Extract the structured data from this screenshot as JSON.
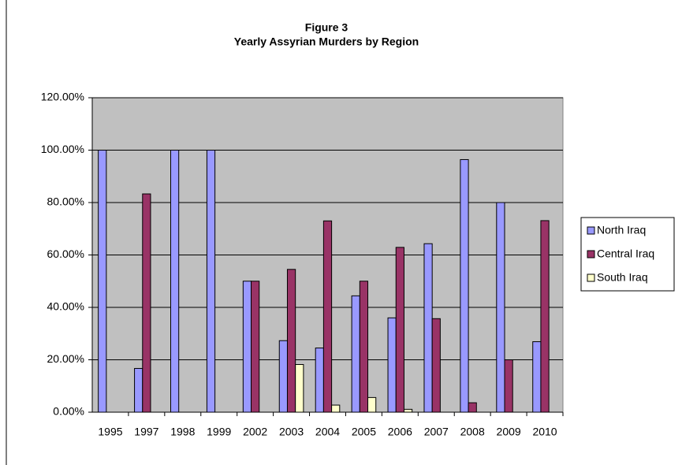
{
  "chart_data": {
    "type": "bar",
    "title": "Figure 3",
    "subtitle": "Yearly Assyrian Murders by Region",
    "categories": [
      "1995",
      "1997",
      "1998",
      "1999",
      "2002",
      "2003",
      "2004",
      "2005",
      "2006",
      "2007",
      "2008",
      "2009",
      "2010"
    ],
    "series": [
      {
        "name": "North Iraq",
        "color": "#9999ff",
        "values": [
          100,
          16.7,
          100,
          100,
          50,
          27.3,
          24.5,
          44.4,
          36,
          64.3,
          96.4,
          80,
          26.9
        ]
      },
      {
        "name": "Central Iraq",
        "color": "#993366",
        "values": [
          0,
          83.3,
          0,
          0,
          50,
          54.5,
          73,
          50,
          62.9,
          35.7,
          3.6,
          20,
          73.1
        ]
      },
      {
        "name": "South Iraq",
        "color": "#ffffcc",
        "values": [
          0,
          0,
          0,
          0,
          0,
          18.2,
          2.7,
          5.6,
          1.1,
          0,
          0,
          0,
          0
        ]
      }
    ],
    "ylim": [
      0,
      120
    ],
    "yticks": [
      {
        "value": 0,
        "label": "0.00%"
      },
      {
        "value": 20,
        "label": "20.00%"
      },
      {
        "value": 40,
        "label": "40.00%"
      },
      {
        "value": 60,
        "label": "60.00%"
      },
      {
        "value": 80,
        "label": "80.00%"
      },
      {
        "value": 100,
        "label": "100.00%"
      },
      {
        "value": 120,
        "label": "120.00%"
      }
    ],
    "grid": true,
    "legend": "right",
    "plot_background": "#c0c0c0"
  }
}
